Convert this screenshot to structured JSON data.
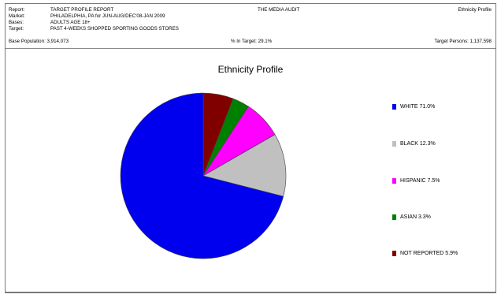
{
  "header": {
    "report_label": "Report:",
    "report_value": "TARGET PROFILE REPORT",
    "market_label": "Market:",
    "market_value": "PHILADELPHIA, PA for JUN-AUG/DEC'08-JAN 2009",
    "bases_label": "Bases:",
    "bases_value": "ADULTS AGE 18+",
    "target_label": "Target:",
    "target_value": "PAST 4-WEEKS SHOPPED SPORTING GOODS STORES",
    "center_title": "THE MEDIA AUDIT",
    "right_title": "Ethnicity Profile",
    "base_population": "Base Population: 3,914,073",
    "pct_in_target": "% In Target: 29.1%",
    "target_persons": "Target Persons: 1,137,598"
  },
  "chart_data": {
    "type": "pie",
    "title": "Ethnicity Profile",
    "slices": [
      {
        "label": "WHITE 71.0%",
        "value": 71.0,
        "color": "#0000ee"
      },
      {
        "label": "BLACK 12.3%",
        "value": 12.3,
        "color": "#c0c0c0"
      },
      {
        "label": "HISPANIC 7.5%",
        "value": 7.5,
        "color": "#ff00ff"
      },
      {
        "label": "ASIAN 3.3%",
        "value": 3.3,
        "color": "#008000"
      },
      {
        "label": "NOT REPORTED 5.9%",
        "value": 5.9,
        "color": "#800000"
      }
    ],
    "legend_position": "right",
    "start": "top, clockwise, NOT REPORTED first"
  }
}
